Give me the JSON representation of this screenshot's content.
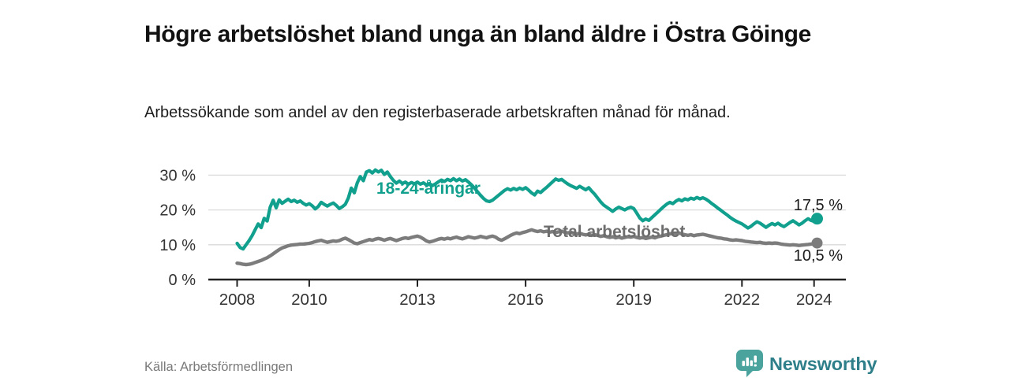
{
  "header": {
    "title": "Högre arbetslöshet bland unga än bland äldre i Östra Göinge",
    "subtitle": "Arbetssökande som andel av den registerbaserade arbetskraften månad för månad."
  },
  "footer": {
    "source": "Källa: Arbetsförmedlingen",
    "brand": "Newsworthy",
    "brand_icon": "bar-chart-speech-bubble-icon"
  },
  "colors": {
    "youth_line": "#12a08e",
    "total_line": "#7c7c7c",
    "total_label": "#6d6d6d",
    "grid": "#dadada",
    "axis": "#222222",
    "tick_text": "#333333",
    "end_label": "#1a1a1a",
    "brand_text": "#2e7f8a",
    "brand_icon": "#4aa39c"
  },
  "chart_data": {
    "type": "line",
    "unit": "%",
    "x_unit": "month",
    "x_start": "2008-01",
    "x_end": "2024-02",
    "grid": true,
    "legend": "inline-labels",
    "ylim": [
      0,
      33
    ],
    "xlim": [
      2007.2,
      2024.9
    ],
    "yticks": [
      {
        "v": 0,
        "label": "0 %"
      },
      {
        "v": 10,
        "label": "10 %"
      },
      {
        "v": 20,
        "label": "20 %"
      },
      {
        "v": 30,
        "label": "30 %"
      }
    ],
    "xticks": [
      {
        "v": 2008,
        "label": "2008"
      },
      {
        "v": 2010,
        "label": "2010"
      },
      {
        "v": 2013,
        "label": "2013"
      },
      {
        "v": 2016,
        "label": "2016"
      },
      {
        "v": 2019,
        "label": "2019"
      },
      {
        "v": 2022,
        "label": "2022"
      },
      {
        "v": 2024,
        "label": "2024"
      }
    ],
    "series": [
      {
        "name": "18-24-åringar",
        "color": "#12a08e",
        "end_label": "17,5 %",
        "end_value": 17.5,
        "values": [
          10.4,
          9.2,
          8.8,
          10.0,
          11.2,
          12.6,
          14.3,
          16.0,
          14.9,
          17.6,
          16.8,
          20.8,
          22.8,
          20.6,
          22.9,
          21.9,
          22.5,
          23.1,
          22.4,
          22.8,
          22.2,
          22.6,
          21.9,
          21.4,
          21.8,
          21.2,
          20.3,
          21.0,
          22.2,
          21.6,
          21.1,
          21.6,
          22.0,
          21.3,
          20.4,
          20.9,
          21.6,
          23.4,
          26.3,
          24.9,
          27.8,
          29.6,
          28.4,
          30.9,
          31.3,
          30.6,
          31.5,
          30.9,
          31.4,
          30.2,
          30.9,
          29.6,
          28.5,
          27.7,
          28.3,
          27.6,
          28.0,
          27.4,
          27.9,
          27.5,
          28.0,
          27.4,
          27.8,
          27.2,
          27.6,
          27.0,
          27.5,
          28.1,
          28.6,
          28.2,
          28.8,
          28.4,
          29.0,
          28.4,
          28.9,
          28.3,
          28.7,
          28.0,
          27.2,
          26.3,
          25.2,
          24.2,
          23.3,
          22.6,
          22.4,
          22.8,
          23.5,
          24.2,
          24.9,
          25.6,
          26.1,
          25.7,
          26.2,
          25.8,
          26.3,
          25.9,
          26.4,
          25.7,
          24.9,
          24.3,
          25.4,
          25.0,
          25.8,
          26.5,
          27.3,
          28.1,
          28.9,
          28.5,
          28.8,
          28.1,
          27.5,
          27.0,
          26.6,
          26.2,
          26.8,
          26.3,
          25.8,
          26.4,
          25.4,
          24.5,
          23.4,
          22.3,
          21.4,
          20.8,
          20.2,
          19.6,
          20.3,
          20.8,
          20.4,
          20.0,
          20.5,
          20.8,
          20.4,
          19.1,
          17.7,
          16.9,
          17.4,
          17.0,
          17.8,
          18.6,
          19.4,
          20.2,
          21.0,
          21.7,
          22.2,
          21.8,
          22.5,
          23.0,
          22.6,
          23.2,
          22.9,
          23.4,
          23.1,
          23.6,
          23.2,
          23.5,
          23.1,
          22.5,
          21.8,
          21.2,
          20.5,
          19.9,
          19.2,
          18.6,
          17.9,
          17.3,
          16.8,
          16.4,
          16.0,
          15.4,
          14.8,
          15.3,
          16.0,
          16.6,
          16.2,
          15.6,
          15.0,
          15.6,
          16.1,
          15.7,
          16.2,
          15.6,
          15.2,
          15.8,
          16.4,
          16.9,
          16.3,
          15.7,
          16.2,
          16.9,
          17.5,
          17.0,
          16.7,
          17.5
        ]
      },
      {
        "name": "Total arbetslöshet",
        "color": "#7c7c7c",
        "end_label": "10,5 %",
        "end_value": 10.5,
        "values": [
          4.7,
          4.6,
          4.4,
          4.3,
          4.4,
          4.6,
          4.9,
          5.2,
          5.5,
          5.9,
          6.3,
          6.8,
          7.4,
          8.0,
          8.6,
          9.1,
          9.4,
          9.7,
          9.9,
          10.0,
          10.1,
          10.2,
          10.2,
          10.3,
          10.4,
          10.6,
          10.9,
          11.1,
          11.3,
          11.0,
          10.7,
          10.9,
          11.1,
          11.0,
          11.2,
          11.6,
          11.9,
          11.5,
          11.0,
          10.5,
          10.3,
          10.6,
          10.9,
          11.2,
          11.5,
          11.3,
          11.6,
          11.8,
          11.6,
          11.3,
          11.6,
          11.8,
          11.5,
          11.2,
          11.5,
          11.8,
          12.0,
          11.8,
          12.1,
          12.3,
          12.5,
          12.2,
          11.7,
          11.1,
          10.8,
          11.0,
          11.3,
          11.6,
          11.8,
          11.6,
          11.9,
          11.7,
          12.0,
          12.2,
          11.9,
          11.7,
          12.0,
          12.3,
          12.1,
          11.9,
          12.1,
          12.4,
          12.2,
          12.0,
          12.3,
          12.5,
          12.2,
          11.6,
          11.3,
          11.7,
          12.2,
          12.7,
          13.1,
          13.4,
          13.2,
          13.5,
          13.7,
          14.0,
          14.3,
          14.0,
          13.8,
          14.0,
          13.7,
          13.9,
          13.6,
          13.8,
          13.5,
          13.7,
          13.9,
          13.6,
          13.4,
          13.6,
          13.3,
          13.1,
          13.3,
          13.0,
          12.8,
          13.0,
          12.7,
          12.9,
          12.7,
          12.4,
          12.6,
          12.3,
          12.1,
          12.3,
          12.0,
          12.2,
          11.9,
          12.1,
          12.3,
          12.2,
          12.4,
          12.1,
          11.9,
          12.1,
          11.8,
          12.0,
          12.2,
          12.0,
          12.3,
          12.5,
          12.7,
          12.9,
          13.1,
          13.3,
          13.2,
          13.4,
          13.1,
          12.9,
          12.7,
          12.9,
          12.6,
          12.8,
          12.9,
          13.0,
          12.8,
          12.6,
          12.4,
          12.2,
          12.0,
          11.9,
          11.7,
          11.6,
          11.4,
          11.3,
          11.4,
          11.3,
          11.2,
          11.0,
          10.9,
          10.8,
          10.7,
          10.6,
          10.7,
          10.5,
          10.4,
          10.5,
          10.4,
          10.5,
          10.4,
          10.2,
          10.1,
          10.0,
          9.9,
          10.0,
          9.9,
          9.8,
          9.9,
          10.0,
          10.1,
          10.2,
          10.3,
          10.5
        ]
      }
    ]
  }
}
